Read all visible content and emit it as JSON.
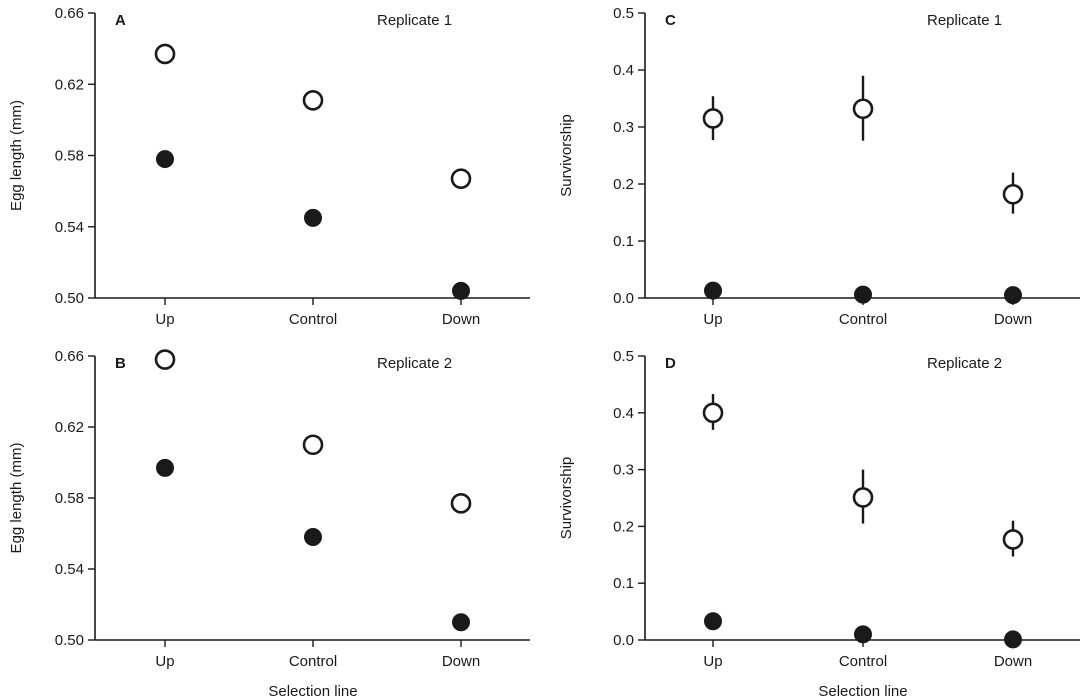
{
  "figure": {
    "x_title": "Selection line"
  },
  "chart_data": [
    {
      "panel": "A",
      "annotation": "Replicate 1",
      "type": "scatter",
      "categories": [
        "Up",
        "Control",
        "Down"
      ],
      "ylabel": "Egg length (mm)",
      "ylim": [
        0.5,
        0.66
      ],
      "yticks": [
        "0.50",
        "0.54",
        "0.58",
        "0.62",
        "0.66"
      ],
      "series": [
        {
          "style": "open",
          "values": [
            0.637,
            0.611,
            0.567
          ],
          "err": [
            null,
            null,
            null
          ]
        },
        {
          "style": "filled",
          "values": [
            0.578,
            0.545,
            0.504
          ],
          "err": [
            null,
            null,
            null
          ]
        }
      ]
    },
    {
      "panel": "B",
      "annotation": "Replicate 2",
      "type": "scatter",
      "categories": [
        "Up",
        "Control",
        "Down"
      ],
      "ylabel": "Egg length (mm)",
      "xlabel": "Selection line",
      "ylim": [
        0.5,
        0.66
      ],
      "yticks": [
        "0.50",
        "0.54",
        "0.58",
        "0.62",
        "0.66"
      ],
      "series": [
        {
          "style": "open",
          "values": [
            0.658,
            0.61,
            0.577
          ],
          "err": [
            null,
            null,
            null
          ]
        },
        {
          "style": "filled",
          "values": [
            0.597,
            0.558,
            0.51
          ],
          "err": [
            null,
            null,
            null
          ]
        }
      ]
    },
    {
      "panel": "C",
      "annotation": "Replicate 1",
      "type": "scatter",
      "categories": [
        "Up",
        "Control",
        "Down"
      ],
      "ylabel": "Survivorship",
      "ylim": [
        0.0,
        0.5
      ],
      "yticks": [
        "0.0",
        "0.1",
        "0.2",
        "0.3",
        "0.4",
        "0.5"
      ],
      "series": [
        {
          "style": "open",
          "values": [
            0.315,
            0.332,
            0.182
          ],
          "err": [
            [
              0.277,
              0.354
            ],
            [
              0.276,
              0.39
            ],
            [
              0.148,
              0.22
            ]
          ]
        },
        {
          "style": "filled",
          "values": [
            0.013,
            0.006,
            0.005
          ],
          "err": [
            null,
            null,
            null
          ]
        }
      ]
    },
    {
      "panel": "D",
      "annotation": "Replicate 2",
      "type": "scatter",
      "categories": [
        "Up",
        "Control",
        "Down"
      ],
      "ylabel": "Survivorship",
      "xlabel": "Selection line",
      "ylim": [
        0.0,
        0.5
      ],
      "yticks": [
        "0.0",
        "0.1",
        "0.2",
        "0.3",
        "0.4",
        "0.5"
      ],
      "series": [
        {
          "style": "open",
          "values": [
            0.4,
            0.251,
            0.177
          ],
          "err": [
            [
              0.37,
              0.433
            ],
            [
              0.205,
              0.3
            ],
            [
              0.147,
              0.21
            ]
          ]
        },
        {
          "style": "filled",
          "values": [
            0.033,
            0.01,
            0.001
          ],
          "err": [
            null,
            null,
            null
          ]
        }
      ]
    }
  ]
}
